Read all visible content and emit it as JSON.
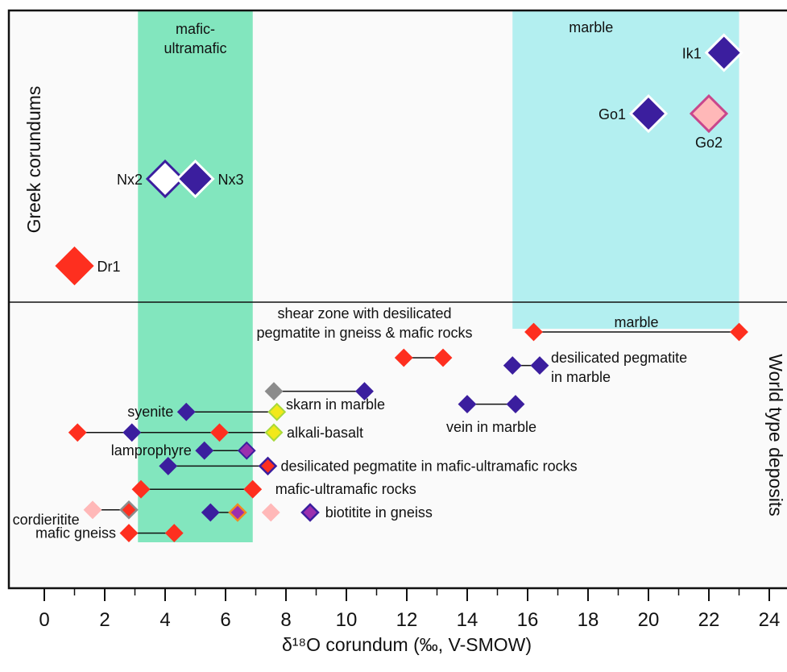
{
  "chart_data": {
    "type": "scatter",
    "xlabel": "δ¹⁸O corundum (‰, V-SMOW)",
    "xlim": [
      -1.2,
      24.6
    ],
    "xticks": [
      0,
      2,
      4,
      6,
      8,
      10,
      12,
      14,
      16,
      18,
      20,
      22,
      24
    ],
    "panel_labels": {
      "top": "Greek corundums",
      "bottom": "World type deposits"
    },
    "bands": [
      {
        "label": "mafic-ultramafic",
        "x0": 3.1,
        "x1": 6.9,
        "color": "#82e6be",
        "label_x": 5.0
      },
      {
        "label": "marble",
        "x0": 15.5,
        "x1": 23.0,
        "color": "#b3eff0",
        "label_x": 18.1
      }
    ],
    "greek_samples": [
      {
        "label": "Dr1",
        "x": 1.0,
        "row": 5.5,
        "fill": "#fe2f1f",
        "stroke": "#fe2f1f",
        "size": "large",
        "label_side": "right"
      },
      {
        "label": "Nx2",
        "x": 4.0,
        "row": 3.5,
        "fill": "#ffffff",
        "stroke": "#3b1e9e",
        "size": "large",
        "label_side": "left"
      },
      {
        "label": "Nx3",
        "x": 5.0,
        "row": 3.5,
        "fill": "#3b1e9e",
        "stroke": "#ffffff",
        "size": "large",
        "label_side": "right"
      },
      {
        "label": "Go1",
        "x": 20.0,
        "row": 2.0,
        "fill": "#3b1e9e",
        "stroke": "#ffffff",
        "size": "large",
        "label_side": "left"
      },
      {
        "label": "Go2",
        "x": 22.0,
        "row": 2.0,
        "fill": "#ffb8b8",
        "stroke": "#c8468c",
        "size": "large",
        "label_side": "below"
      },
      {
        "label": "Ik1",
        "x": 22.5,
        "row": 0.6,
        "fill": "#3b1e9e",
        "stroke": "#ffffff",
        "size": "large",
        "label_side": "left"
      }
    ],
    "deposit_ranges": [
      {
        "label": "marble",
        "x_min": 16.2,
        "x_max": 23.0,
        "row": 1,
        "markers": [
          "red",
          "red"
        ]
      },
      {
        "label": "shear zone with desilicated pegmatite in gneiss & mafic rocks",
        "x_min": 11.9,
        "x_max": 13.2,
        "row": 2,
        "markers": [
          "red",
          "red"
        ]
      },
      {
        "label": "desilicated pegmatite in marble",
        "x_min": 15.5,
        "x_max": 16.4,
        "row": 2.3,
        "markers": [
          "blue",
          "blue"
        ]
      },
      {
        "label": "skarn in marble",
        "x_min": 7.6,
        "x_max": 10.6,
        "row": 3.3,
        "markers": [
          "gray",
          "blue"
        ]
      },
      {
        "label": "syenite",
        "x_min": 4.7,
        "x_max": 7.7,
        "row": 4.1,
        "markers": [
          "blue",
          "yellow"
        ]
      },
      {
        "label": "vein in marble",
        "x_min": 14.0,
        "x_max": 15.6,
        "row": 3.8,
        "markers": [
          "blue",
          "blue"
        ]
      },
      {
        "label": "alkali-basalt",
        "x_min": 1.1,
        "x_max": 7.6,
        "row": 4.9,
        "markers": [
          "red",
          "blue",
          "red",
          "yellow"
        ],
        "marker_x": [
          1.1,
          2.9,
          5.8,
          7.6
        ]
      },
      {
        "label": "lamprophyre",
        "x_min": 5.3,
        "x_max": 6.7,
        "row": 5.6,
        "markers": [
          "blue",
          "purple"
        ]
      },
      {
        "label": "desilicated pegmatite in mafic-ultramafic rocks",
        "x_min": 4.1,
        "x_max": 7.4,
        "row": 6.2,
        "markers": [
          "blue",
          "redblue"
        ]
      },
      {
        "label": "mafic-ultramafic rocks",
        "x_min": 3.2,
        "x_max": 6.9,
        "row": 7.1,
        "markers": [
          "red",
          "red"
        ]
      },
      {
        "label": "cordieritite",
        "x_min": 1.6,
        "x_max": 2.8,
        "row": 7.9,
        "markers": [
          "pink",
          "redgray"
        ]
      },
      {
        "label": "biotitite in gneiss",
        "x_min": 5.5,
        "x_max": 6.4,
        "row": 8.0,
        "markers": [
          "blue",
          "orangepurple"
        ]
      },
      {
        "label": "",
        "x_min": 7.5,
        "x_max": 7.5,
        "row": 8.0,
        "markers": [
          "pink"
        ]
      },
      {
        "label": "",
        "x_min": 8.8,
        "x_max": 8.8,
        "row": 8.0,
        "markers": [
          "bluepurple"
        ]
      },
      {
        "label": "mafic gneiss",
        "x_min": 2.8,
        "x_max": 4.3,
        "row": 8.8,
        "markers": [
          "red",
          "red"
        ]
      }
    ],
    "colors": {
      "red": "#fe2f1f",
      "blue": "#3b1e9e",
      "gray": "#8c8c8c",
      "yellow": "#f2e81a",
      "purple": "#9b2fae",
      "pink": "#ffb8b8",
      "green_band": "#82e6be",
      "cyan_band": "#b3eff0"
    },
    "grid": false
  }
}
